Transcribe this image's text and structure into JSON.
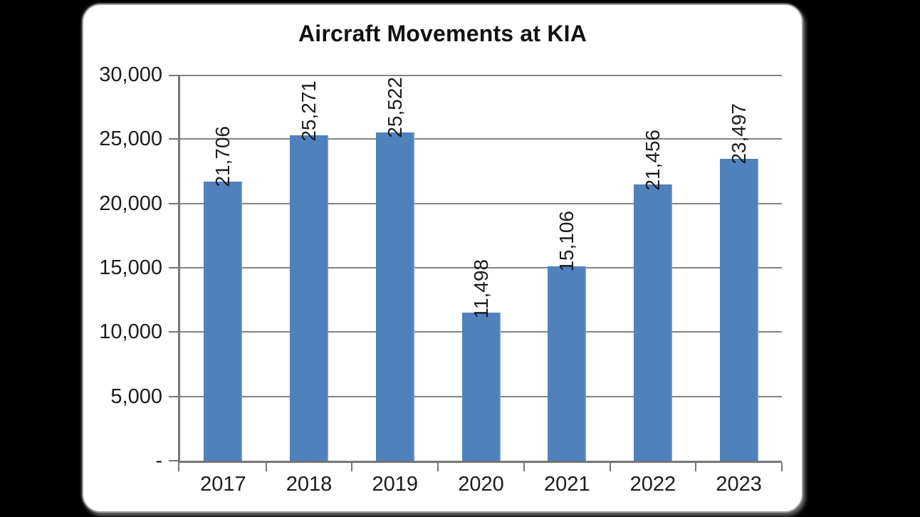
{
  "page": {
    "background": "#000000"
  },
  "card": {
    "background": "#ffffff",
    "border_color": "#9b9b9b"
  },
  "chart_data": {
    "type": "bar",
    "title": "Aircraft Movements at KIA",
    "categories": [
      "2017",
      "2018",
      "2019",
      "2020",
      "2021",
      "2022",
      "2023"
    ],
    "values": [
      21706,
      25271,
      25522,
      11498,
      15106,
      21456,
      23497
    ],
    "value_labels": [
      "21,706",
      "25,271",
      "25,522",
      "11,498",
      "15,106",
      "21,456",
      "23,497"
    ],
    "xlabel": "",
    "ylabel": "",
    "ylim": [
      0,
      30000
    ],
    "ytick_interval": 5000,
    "ytick_labels": [
      "-",
      "5,000",
      "10,000",
      "15,000",
      "20,000",
      "25,000",
      "30,000"
    ],
    "grid": true,
    "legend": false,
    "value_label_rotation_deg": 90,
    "colors": {
      "bar": "#4f81bd",
      "bar_edge_highlight": "#8fadd6",
      "grid": "#838383",
      "axis": "#767676",
      "text": "#1c1c1c",
      "title_text": "#111111"
    }
  }
}
